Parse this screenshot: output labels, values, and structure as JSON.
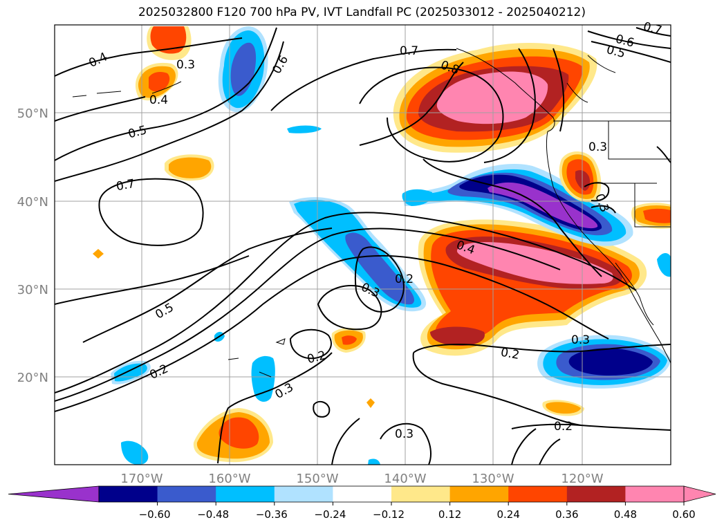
{
  "title": "2025032800 F120 700 hPa PV, IVT Landfall PC (2025033012 - 2025040212)",
  "map": {
    "lat_labels": [
      "50°N",
      "40°N",
      "30°N",
      "20°N"
    ],
    "lon_labels": [
      "170°W",
      "160°W",
      "150°W",
      "140°W",
      "130°W",
      "120°W"
    ],
    "grid": true,
    "contour_labels": [
      "0.4",
      "0.3",
      "0.4",
      "0.5",
      "0.7",
      "0.6",
      "0.7",
      "0.8",
      "0.6",
      "0.5",
      "0.7",
      "0.3",
      "0.3",
      "0.4",
      "0.2",
      "0.3",
      "0.5",
      "0.2",
      "0.2",
      "0.3",
      "0.2",
      "0.3",
      "0.2",
      "0.3"
    ]
  },
  "colorbar": {
    "ticks": [
      "−0.60",
      "−0.48",
      "−0.36",
      "−0.24",
      "−0.12",
      "0.12",
      "0.24",
      "0.36",
      "0.48",
      "0.60"
    ],
    "colors": [
      "#9932cc",
      "#00008b",
      "#3a5bcd",
      "#00bfff",
      "#b0e2ff",
      "#ffffff",
      "#ffe88a",
      "#ffa500",
      "#ff4500",
      "#b22222",
      "#ff85b0",
      "#ff85b0"
    ]
  }
}
